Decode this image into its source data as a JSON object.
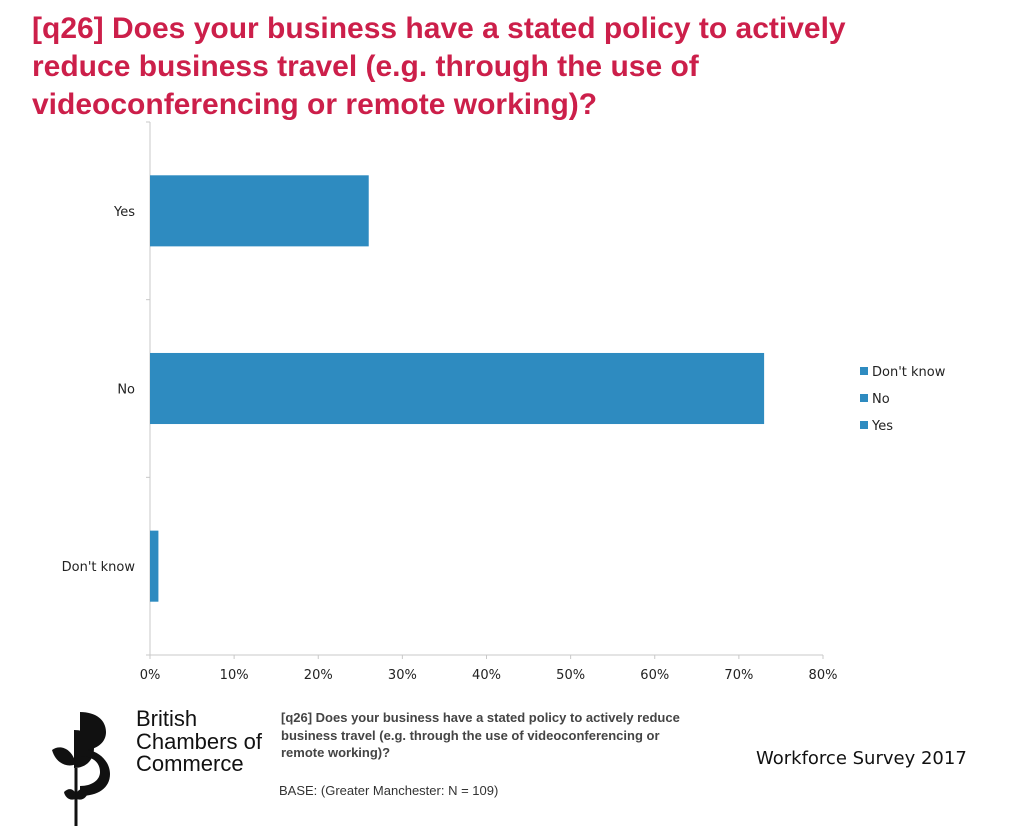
{
  "title": "[q26] Does your business have a stated policy to actively reduce business travel (e.g. through the use of videoconferencing or remote working)?",
  "chart_data": {
    "type": "bar",
    "orientation": "horizontal",
    "categories": [
      "Yes",
      "No",
      "Don't know"
    ],
    "series": [
      {
        "values": [
          26,
          73,
          1
        ],
        "color": "#2e8bc0"
      }
    ],
    "xlim": [
      0,
      80
    ],
    "x_ticks": [
      "0%",
      "10%",
      "20%",
      "30%",
      "40%",
      "50%",
      "60%",
      "70%",
      "80%"
    ],
    "legend": [
      "Don't know",
      "No",
      "Yes"
    ],
    "legend_position": "right",
    "grid": false
  },
  "footer": {
    "question": "[q26] Does your business have a stated policy to actively reduce business travel (e.g. through the use of videoconferencing or remote working)?",
    "base": "BASE: (Greater Manchester: N = 109)",
    "survey": "Workforce Survey 2017"
  },
  "logo": {
    "line1": "British",
    "line2": "Chambers of",
    "line3": "Commerce"
  },
  "colors": {
    "title": "#cc1f4a",
    "bar": "#2e8bc0",
    "axis": "#c8c8c8"
  }
}
